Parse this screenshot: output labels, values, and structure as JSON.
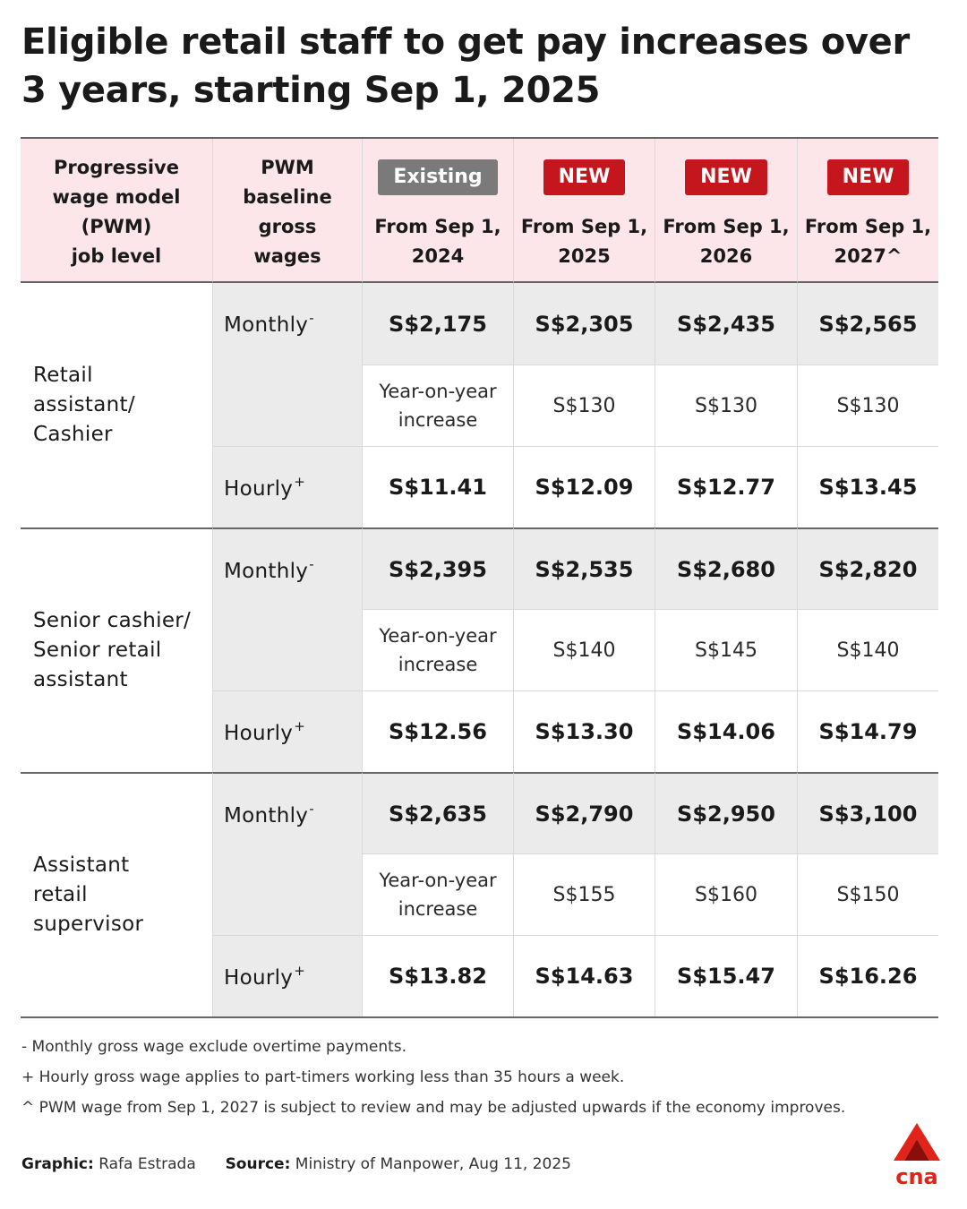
{
  "title": "Eligible retail staff to get pay increases over 3 years, starting Sep 1, 2025",
  "header": {
    "job_level": [
      "Progressive",
      "wage model",
      "(PWM)",
      "job level"
    ],
    "baseline": [
      "PWM",
      "baseline",
      "gross",
      "wages"
    ],
    "columns": [
      {
        "badge": "Existing",
        "line1": "From Sep 1,",
        "line2": "2024"
      },
      {
        "badge": "NEW",
        "line1": "From Sep 1,",
        "line2": "2025"
      },
      {
        "badge": "NEW",
        "line1": "From Sep 1,",
        "line2": "2026"
      },
      {
        "badge": "NEW",
        "line1": "From Sep 1,",
        "line2": "2027^"
      }
    ]
  },
  "row_labels": {
    "monthly": "Monthly",
    "monthly_mark": "-",
    "hourly": "Hourly",
    "hourly_mark": "+",
    "yoy_line1": "Year-on-year",
    "yoy_line2": "increase"
  },
  "groups": [
    {
      "job": [
        "Retail",
        "assistant/",
        "Cashier"
      ],
      "monthly": [
        "S$2,175",
        "S$2,305",
        "S$2,435",
        "S$2,565"
      ],
      "yoy": [
        "S$130",
        "S$130",
        "S$130"
      ],
      "hourly": [
        "S$11.41",
        "S$12.09",
        "S$12.77",
        "S$13.45"
      ]
    },
    {
      "job": [
        "Senior cashier/",
        "Senior retail",
        "assistant"
      ],
      "monthly": [
        "S$2,395",
        "S$2,535",
        "S$2,680",
        "S$2,820"
      ],
      "yoy": [
        "S$140",
        "S$145",
        "S$140"
      ],
      "hourly": [
        "S$12.56",
        "S$13.30",
        "S$14.06",
        "S$14.79"
      ]
    },
    {
      "job": [
        "Assistant",
        "retail",
        "supervisor"
      ],
      "monthly": [
        "S$2,635",
        "S$2,790",
        "S$2,950",
        "S$3,100"
      ],
      "yoy": [
        "S$155",
        "S$160",
        "S$150"
      ],
      "hourly": [
        "S$13.82",
        "S$14.63",
        "S$15.47",
        "S$16.26"
      ]
    }
  ],
  "notes": [
    "- Monthly gross wage exclude overtime payments.",
    "+ Hourly gross wage applies to part-timers working less than 35 hours a week.",
    "^ PWM wage from Sep 1, 2027 is subject to review and may be adjusted upwards if the economy improves."
  ],
  "credits": {
    "graphic_label": "Graphic:",
    "graphic": "Rafa Estrada",
    "source_label": "Source:",
    "source": "Ministry of Manpower, Aug 11, 2025"
  },
  "logo": {
    "text": "cna",
    "color": "#e2231a"
  }
}
